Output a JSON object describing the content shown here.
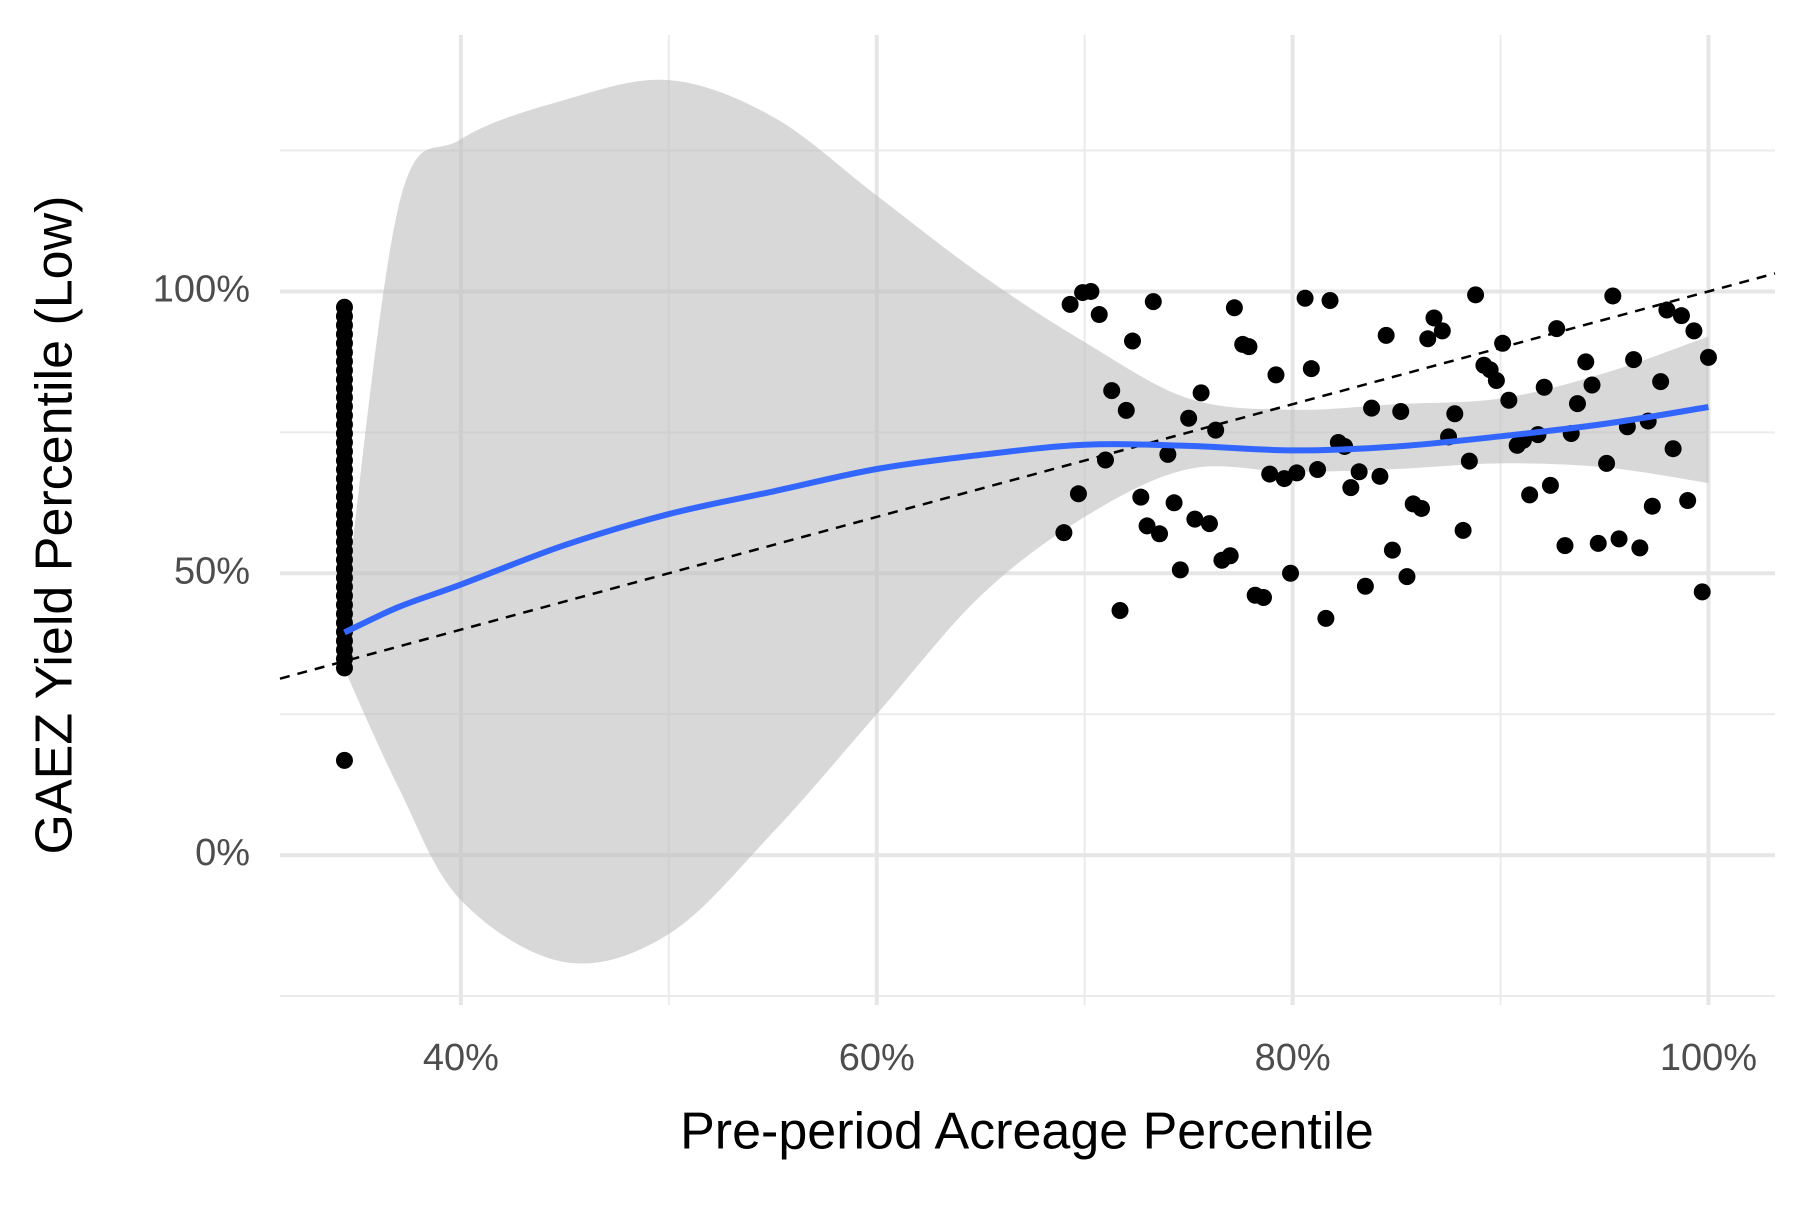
{
  "chart_data": {
    "type": "scatter",
    "x_label": "Pre-period Acreage Percentile",
    "y_label": "GAEZ Yield Percentile (Low)",
    "xlim": [
      31.3,
      103.2
    ],
    "ylim": [
      -26.6,
      145.5
    ],
    "xticks": [
      {
        "value": 40,
        "label": "40%"
      },
      {
        "value": 60,
        "label": "60%"
      },
      {
        "value": 80,
        "label": "80%"
      },
      {
        "value": 100,
        "label": "100%"
      }
    ],
    "yticks": [
      {
        "value": 0,
        "label": "0%"
      },
      {
        "value": 50,
        "label": "50%"
      },
      {
        "value": 100,
        "label": "100%"
      }
    ],
    "xminor": [
      50,
      70,
      90
    ],
    "yminor": [
      -25,
      25,
      75,
      125
    ],
    "grid": true,
    "points": {
      "color": "#000000",
      "x": [
        34.4,
        34.4,
        34.4,
        34.4,
        34.4,
        34.4,
        34.4,
        34.4,
        34.4,
        34.4,
        34.4,
        34.4,
        34.4,
        34.4,
        34.4,
        34.4,
        34.4,
        34.4,
        34.4,
        34.4,
        34.4,
        34.4,
        34.4,
        34.4,
        34.4,
        34.4,
        34.4,
        34.4,
        34.4,
        34.4,
        34.4,
        34.4,
        34.4,
        34.4,
        34.4,
        34.4,
        34.4,
        34.4,
        34.4,
        34.4,
        34.4,
        34.4,
        69.0,
        69.3,
        69.7,
        69.9,
        70.3,
        70.7,
        71.0,
        71.3,
        71.7,
        72.0,
        72.3,
        72.7,
        73.0,
        73.3,
        73.6,
        74.0,
        74.3,
        74.6,
        75.0,
        75.3,
        75.6,
        76.0,
        76.3,
        76.6,
        77.0,
        77.2,
        77.6,
        77.9,
        78.2,
        78.6,
        78.9,
        79.2,
        79.6,
        79.9,
        80.2,
        80.6,
        80.9,
        81.2,
        81.6,
        81.8,
        82.2,
        82.5,
        82.8,
        83.2,
        83.5,
        83.8,
        84.2,
        84.5,
        84.8,
        85.2,
        85.5,
        85.8,
        86.2,
        86.5,
        86.8,
        87.2,
        87.5,
        87.8,
        88.2,
        88.5,
        88.8,
        89.2,
        89.5,
        89.8,
        90.1,
        90.4,
        90.8,
        91.1,
        91.4,
        91.8,
        92.1,
        92.4,
        92.7,
        93.1,
        93.4,
        93.7,
        94.1,
        94.4,
        94.7,
        95.1,
        95.4,
        95.7,
        96.1,
        96.4,
        96.7,
        97.1,
        97.3,
        97.7,
        98.0,
        98.3,
        98.7,
        99.0,
        99.3,
        99.7,
        100
      ],
      "y": [
        16.8,
        33.2,
        34.8,
        36.4,
        38,
        39.6,
        41.2,
        42.8,
        44.4,
        46,
        47.6,
        49.2,
        50.8,
        52.4,
        54,
        55.6,
        57.2,
        58.8,
        60.4,
        62,
        63.6,
        65.2,
        66.8,
        68.4,
        70,
        71.6,
        73.2,
        74.8,
        76.4,
        78,
        79.6,
        81.2,
        82.8,
        84.4,
        86,
        87.6,
        89.2,
        90.8,
        92.4,
        94,
        95.6,
        97.2,
        57.2,
        97.7,
        64.1,
        99.8,
        100,
        95.9,
        70.1,
        82.4,
        43.4,
        78.9,
        91.2,
        63.5,
        58.4,
        98.2,
        57.0,
        71.1,
        62.5,
        50.6,
        77.5,
        59.6,
        82.0,
        58.8,
        75.4,
        52.3,
        53.1,
        97.1,
        90.6,
        90.2,
        46.1,
        45.7,
        67.6,
        85.2,
        66.8,
        50.0,
        67.8,
        98.8,
        86.3,
        68.4,
        42.0,
        98.4,
        73.2,
        72.5,
        65.2,
        68.0,
        47.7,
        79.3,
        67.2,
        92.2,
        54.1,
        78.7,
        49.4,
        62.3,
        61.5,
        91.6,
        95.3,
        93.0,
        74.2,
        78.3,
        57.6,
        69.9,
        99.4,
        86.9,
        86.1,
        84.2,
        90.8,
        80.7,
        72.7,
        73.6,
        63.9,
        74.6,
        83.0,
        65.6,
        93.4,
        54.9,
        74.8,
        80.1,
        87.5,
        83.4,
        55.3,
        69.5,
        99.2,
        56.1,
        76.0,
        87.9,
        54.5,
        77.0,
        61.9,
        84.0,
        96.7,
        72.1,
        95.7,
        62.9,
        93.0,
        46.7,
        88.3
      ]
    },
    "smooth": {
      "color": "#3366ff",
      "fill": "#bebebe",
      "x": [
        34.4,
        37,
        40,
        45,
        50,
        55,
        60,
        65,
        70,
        75,
        80,
        85,
        90,
        95,
        100
      ],
      "y": [
        39.5,
        44,
        48,
        55,
        60.5,
        64.5,
        68.5,
        71,
        72.8,
        72.6,
        71.8,
        72.5,
        74.3,
        76.5,
        79.5
      ],
      "ymin": [
        33,
        12,
        -8,
        -19,
        -14,
        4,
        25,
        46,
        60,
        68.5,
        68,
        68.5,
        69.5,
        68.8,
        66
      ],
      "ymax": [
        43,
        115,
        127,
        134,
        137.5,
        131,
        117,
        103,
        91,
        81,
        79,
        80,
        81,
        85.5,
        92
      ]
    },
    "reference_line": {
      "slope": 1,
      "intercept": 0,
      "color": "#000000"
    }
  }
}
